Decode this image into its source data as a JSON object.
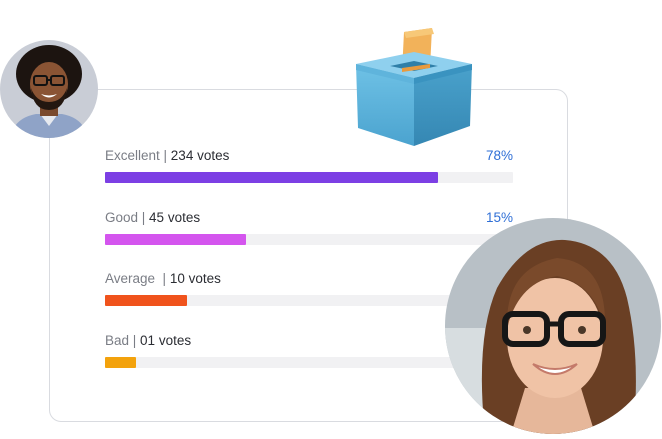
{
  "poll": {
    "options": [
      {
        "label": "Excellent",
        "sep": " | ",
        "votes": "234 votes",
        "percent": "78%",
        "fraction": 0.815,
        "color": "#7c3fe4"
      },
      {
        "label": "Good",
        "sep": " | ",
        "votes": "45 votes",
        "percent": "15%",
        "fraction": 0.345,
        "color": "#d455ee"
      },
      {
        "label": "Average",
        "sep": "  | ",
        "votes": "10 votes",
        "percent": "",
        "fraction": 0.2,
        "color": "#f0531c"
      },
      {
        "label": "Bad",
        "sep": " | ",
        "votes": "01 votes",
        "percent": "",
        "fraction": 0.075,
        "color": "#f3a20c"
      }
    ]
  },
  "icons": {
    "ballot_box": "ballot-box-icon",
    "avatar_man": "avatar-man",
    "avatar_woman": "avatar-woman"
  }
}
